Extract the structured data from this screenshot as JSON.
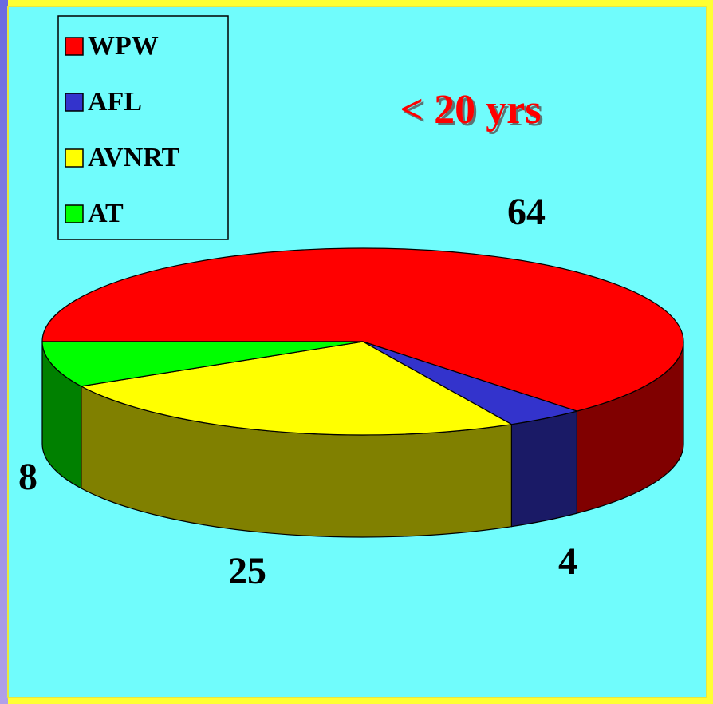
{
  "chart_data": {
    "type": "pie3d",
    "title": "< 20 yrs",
    "categories": [
      "WPW",
      "AFL",
      "AVNRT",
      "AT"
    ],
    "values": [
      64,
      4,
      25,
      8
    ],
    "colors": [
      "#ff0000",
      "#3333cc",
      "#ffff00",
      "#00ff00"
    ],
    "legend": "top-left"
  }
}
